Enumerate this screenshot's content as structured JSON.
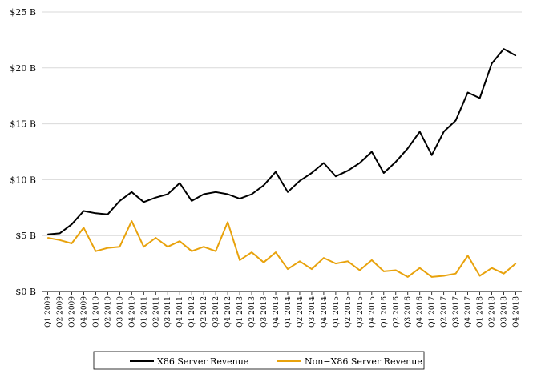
{
  "chart_data": {
    "type": "line",
    "title": "",
    "xlabel": "",
    "ylabel": "",
    "ylim": [
      0,
      25
    ],
    "y_unit": "B",
    "y_ticks": [
      "$0 B",
      "$5 B",
      "$10 B",
      "$15 B",
      "$20 B",
      "$25 B"
    ],
    "y_tick_values": [
      0,
      5,
      10,
      15,
      20,
      25
    ],
    "grid": "horizontal",
    "legend_position": "bottom",
    "categories": [
      "Q1 2009",
      "Q2 2009",
      "Q3 2009",
      "Q4 2009",
      "Q1 2010",
      "Q2 2010",
      "Q3 2010",
      "Q4 2010",
      "Q1 2011",
      "Q2 2011",
      "Q3 2011",
      "Q4 2011",
      "Q1 2012",
      "Q2 2012",
      "Q3 2012",
      "Q4 2012",
      "Q1 2013",
      "Q2 2013",
      "Q3 2013",
      "Q4 2013",
      "Q1 2014",
      "Q2 2014",
      "Q3 2014",
      "Q4 2014",
      "Q1 2015",
      "Q2 2015",
      "Q3 2015",
      "Q4 2015",
      "Q1 2016",
      "Q2 2016",
      "Q3 2016",
      "Q4 2016",
      "Q1 2017",
      "Q2 2017",
      "Q3 2017",
      "Q4 2017",
      "Q1 2018",
      "Q2 2018",
      "Q3 2018",
      "Q4 2018"
    ],
    "series": [
      {
        "name": "X86 Server Revenue",
        "color": "#000000",
        "values": [
          5.1,
          5.2,
          6.0,
          7.2,
          7.0,
          6.9,
          8.1,
          8.9,
          8.0,
          8.4,
          8.7,
          9.7,
          8.1,
          8.7,
          8.9,
          8.7,
          8.3,
          8.7,
          9.5,
          10.7,
          8.9,
          9.9,
          10.6,
          11.5,
          10.3,
          10.8,
          11.5,
          12.5,
          10.6,
          11.6,
          12.8,
          14.3,
          12.2,
          14.3,
          15.3,
          17.8,
          17.3,
          20.4,
          21.7,
          21.1
        ]
      },
      {
        "name": "Non-X86 Server Revenue",
        "color": "#E8A20C",
        "values": [
          4.8,
          4.6,
          4.3,
          5.7,
          3.6,
          3.9,
          4.0,
          6.3,
          4.0,
          4.8,
          4.0,
          4.5,
          3.6,
          4.0,
          3.6,
          6.2,
          2.8,
          3.5,
          2.6,
          3.5,
          2.0,
          2.7,
          2.0,
          3.0,
          2.5,
          2.7,
          1.9,
          2.8,
          1.8,
          1.9,
          1.3,
          2.1,
          1.3,
          1.4,
          1.6,
          3.2,
          1.4,
          2.1,
          1.6,
          2.5
        ]
      }
    ]
  },
  "legend": {
    "x86_label": "X86 Server Revenue",
    "non_x86_label": "Non−X86 Server Revenue"
  }
}
